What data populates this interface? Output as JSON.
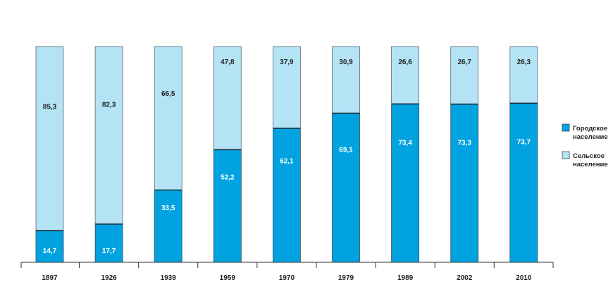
{
  "chart_data": {
    "type": "bar",
    "stacked": true,
    "percent": true,
    "categories": [
      "1897",
      "1926",
      "1939",
      "1959",
      "1970",
      "1979",
      "1989",
      "2002",
      "2010"
    ],
    "series": [
      {
        "name": "Городское население",
        "color": "#00a3e0",
        "values": [
          14.7,
          17.7,
          33.5,
          52.2,
          62.1,
          69.1,
          73.4,
          73.3,
          73.7
        ],
        "labels": [
          "14,7",
          "17,7",
          "33,5",
          "52,2",
          "62,1",
          "69,1",
          "73,4",
          "73,3",
          "73,7"
        ]
      },
      {
        "name": "Сельское население",
        "color": "#b5e3f6",
        "values": [
          85.3,
          82.3,
          66.5,
          47.8,
          37.9,
          30.9,
          26.6,
          26.7,
          26.3
        ],
        "labels": [
          "85,3",
          "82,3",
          "66,5",
          "47,8",
          "37,9",
          "30,9",
          "26,6",
          "26,7",
          "26,3"
        ]
      }
    ],
    "legend": {
      "placement": "right",
      "entries": [
        {
          "line1": "Городское",
          "line2": "население",
          "color": "#00a3e0"
        },
        {
          "line1": "Сельское",
          "line2": "население",
          "color": "#b5e3f6"
        }
      ]
    },
    "ylim": [
      0,
      100
    ],
    "grid": false
  }
}
